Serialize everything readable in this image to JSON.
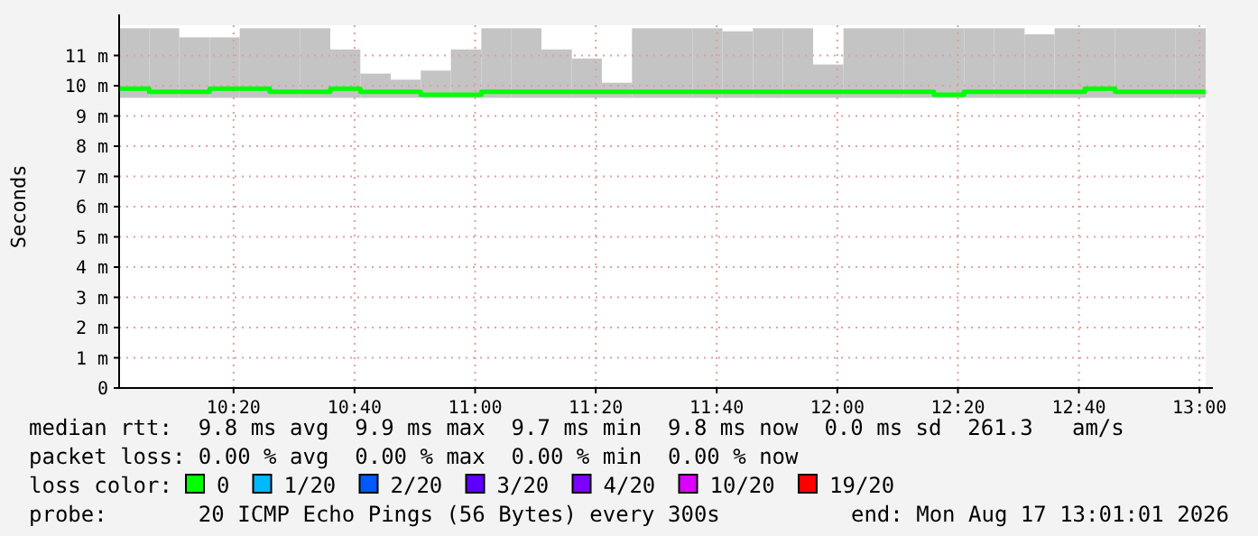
{
  "chart_data": {
    "type": "step",
    "ylabel": "Seconds",
    "legend_title": "loss color:",
    "legend": "bottom",
    "grid": true,
    "xlim": [
      10.017,
      13.017
    ],
    "ylim": [
      0,
      12
    ],
    "xticks": [
      {
        "value": 10.333,
        "label": "10:20"
      },
      {
        "value": 10.667,
        "label": "10:40"
      },
      {
        "value": 11,
        "label": "11:00"
      },
      {
        "value": 11.333,
        "label": "11:20"
      },
      {
        "value": 11.667,
        "label": "11:40"
      },
      {
        "value": 12,
        "label": "12:00"
      },
      {
        "value": 12.333,
        "label": "12:20"
      },
      {
        "value": 12.667,
        "label": "12:40"
      },
      {
        "value": 13,
        "label": "13:00"
      }
    ],
    "yticks": [
      0,
      {
        "value": 1,
        "label": "1 m"
      },
      {
        "value": 2,
        "label": "2 m"
      },
      {
        "value": 3,
        "label": "3 m"
      },
      {
        "value": 4,
        "label": "4 m"
      },
      {
        "value": 5,
        "label": "5 m"
      },
      {
        "value": 6,
        "label": "6 m"
      },
      {
        "value": 7,
        "label": "7 m"
      },
      {
        "value": 8,
        "label": "8 m"
      },
      {
        "value": 9,
        "label": "9 m"
      },
      {
        "value": 10,
        "label": "10 m"
      },
      {
        "value": 11,
        "label": "11 m"
      }
    ],
    "x": [
      10.017,
      10.1,
      10.183,
      10.267,
      10.35,
      10.433,
      10.517,
      10.6,
      10.683,
      10.767,
      10.85,
      10.933,
      11.017,
      11.1,
      11.183,
      11.267,
      11.35,
      11.433,
      11.517,
      11.6,
      11.683,
      11.767,
      11.85,
      11.933,
      12.017,
      12.1,
      12.183,
      12.267,
      12.35,
      12.433,
      12.517,
      12.6,
      12.683,
      12.767,
      12.85,
      12.933,
      13.017
    ],
    "series": [
      {
        "name": "0",
        "color": "#00ff00",
        "values": [
          9.9,
          9.8,
          9.8,
          9.9,
          9.9,
          9.8,
          9.8,
          9.9,
          9.8,
          9.8,
          9.7,
          9.7,
          9.8,
          9.8,
          9.8,
          9.8,
          9.8,
          9.8,
          9.8,
          9.8,
          9.8,
          9.8,
          9.8,
          9.8,
          9.8,
          9.8,
          9.8,
          9.7,
          9.8,
          9.8,
          9.8,
          9.8,
          9.9,
          9.8,
          9.8,
          9.8,
          9.8
        ],
        "lower": [
          9.6,
          9.6,
          9.6,
          9.6,
          9.6,
          9.6,
          9.6,
          9.6,
          9.6,
          9.6,
          9.6,
          9.6,
          9.6,
          9.6,
          9.6,
          9.6,
          9.6,
          9.6,
          9.6,
          9.6,
          9.6,
          9.6,
          9.6,
          9.6,
          9.6,
          9.6,
          9.6,
          9.6,
          9.6,
          9.6,
          9.6,
          9.6,
          9.6,
          9.6,
          9.6,
          9.6,
          9.6
        ],
        "upper": [
          11.9,
          11.9,
          11.6,
          11.6,
          11.9,
          11.9,
          11.9,
          11.2,
          10.4,
          10.2,
          10.5,
          11.2,
          11.9,
          11.9,
          11.2,
          10.9,
          10.1,
          11.9,
          11.9,
          11.9,
          11.8,
          11.9,
          11.9,
          10.7,
          11.9,
          11.9,
          11.9,
          11.9,
          11.9,
          11.9,
          11.7,
          11.9,
          11.9,
          11.9,
          11.9,
          11.9,
          11.9
        ]
      },
      {
        "name": "1/20",
        "color": "#00b8ff",
        "values": [
          null,
          null,
          null,
          null,
          null,
          null,
          null,
          null,
          null,
          null,
          null,
          null,
          null,
          null,
          null,
          null,
          null,
          null,
          null,
          null,
          null,
          null,
          null,
          null,
          null,
          null,
          null,
          null,
          null,
          null,
          null,
          null,
          null,
          null,
          null,
          null,
          null
        ]
      },
      {
        "name": "2/20",
        "color": "#0059ff",
        "values": [
          null,
          null,
          null,
          null,
          null,
          null,
          null,
          null,
          null,
          null,
          null,
          null,
          null,
          null,
          null,
          null,
          null,
          null,
          null,
          null,
          null,
          null,
          null,
          null,
          null,
          null,
          null,
          null,
          null,
          null,
          null,
          null,
          null,
          null,
          null,
          null,
          null
        ]
      },
      {
        "name": "3/20",
        "color": "#5e00ff",
        "values": [
          null,
          null,
          null,
          null,
          null,
          null,
          null,
          null,
          null,
          null,
          null,
          null,
          null,
          null,
          null,
          null,
          null,
          null,
          null,
          null,
          null,
          null,
          null,
          null,
          null,
          null,
          null,
          null,
          null,
          null,
          null,
          null,
          null,
          null,
          null,
          null,
          null
        ]
      },
      {
        "name": "4/20",
        "color": "#7e00ff",
        "values": [
          null,
          null,
          null,
          null,
          null,
          null,
          null,
          null,
          null,
          null,
          null,
          null,
          null,
          null,
          null,
          null,
          null,
          null,
          null,
          null,
          null,
          null,
          null,
          null,
          null,
          null,
          null,
          null,
          null,
          null,
          null,
          null,
          null,
          null,
          null,
          null,
          null
        ]
      },
      {
        "name": "10/20",
        "color": "#dd00ff",
        "values": [
          null,
          null,
          null,
          null,
          null,
          null,
          null,
          null,
          null,
          null,
          null,
          null,
          null,
          null,
          null,
          null,
          null,
          null,
          null,
          null,
          null,
          null,
          null,
          null,
          null,
          null,
          null,
          null,
          null,
          null,
          null,
          null,
          null,
          null,
          null,
          null,
          null
        ]
      },
      {
        "name": "19/20",
        "color": "#ff0000",
        "values": [
          null,
          null,
          null,
          null,
          null,
          null,
          null,
          null,
          null,
          null,
          null,
          null,
          null,
          null,
          null,
          null,
          null,
          null,
          null,
          null,
          null,
          null,
          null,
          null,
          null,
          null,
          null,
          null,
          null,
          null,
          null,
          null,
          null,
          null,
          null,
          null,
          null
        ]
      }
    ],
    "annotations": [
      "median rtt:  9.8 ms avg  9.9 ms max  9.7 ms min  9.8 ms now  0.0 ms sd  261.3   am/s",
      "packet loss: 0.00 % avg  0.00 % max  0.00 % min  0.00 % now",
      "probe:       20 ICMP Echo Pings (56 Bytes) every 300s",
      "end: Mon Aug 17 13:01:01 2026"
    ]
  }
}
